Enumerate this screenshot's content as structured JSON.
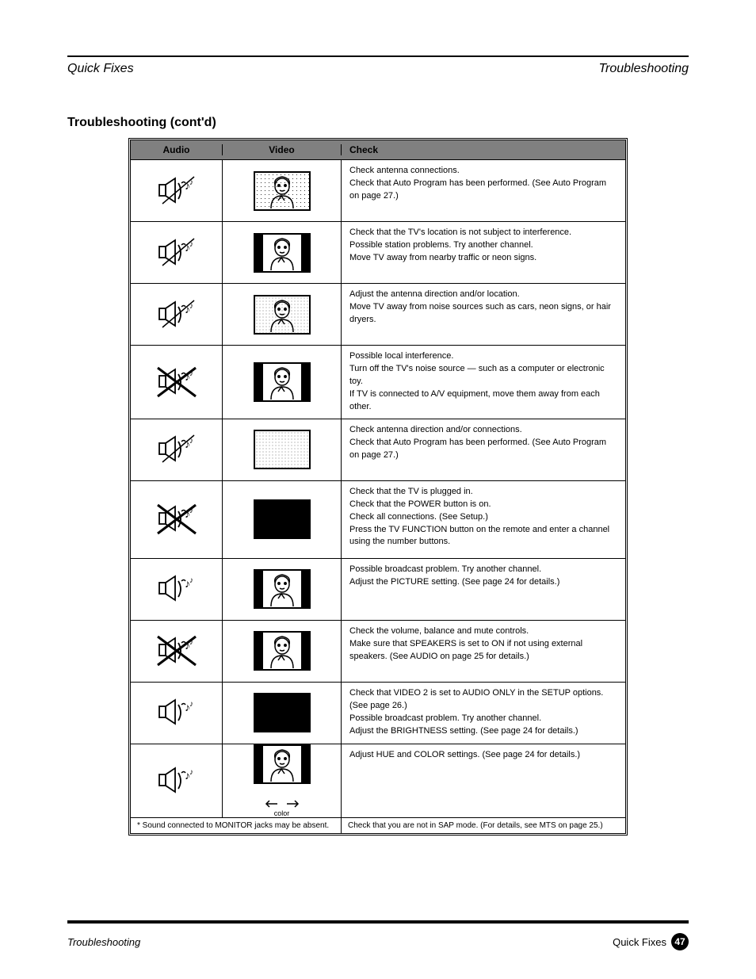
{
  "header": {
    "left": "Quick Fixes",
    "right": "Troubleshooting"
  },
  "title": "Troubleshooting (cont'd)",
  "table": {
    "columns": [
      "Audio",
      "Video",
      "Check"
    ],
    "rows": [
      {
        "audio": "noisy",
        "video": "noisy_face",
        "check": "Check antenna connections.\nCheck that Auto Program has been performed. (See Auto Program on page 27.)"
      },
      {
        "audio": "noisy",
        "video": "pillar_face",
        "check": "Check that the TV's location is not subject to interference.\nPossible station problems. Try another channel.\nMove TV away from nearby traffic or neon signs."
      },
      {
        "audio": "noisy",
        "video": "snow_face",
        "check": "Adjust the antenna direction and/or location.\nMove TV away from noise sources such as cars, neon signs, or hair dryers."
      },
      {
        "audio": "none",
        "video": "pillar_face",
        "check": "Possible local interference.\nTurn off the TV's noise source — such as a computer or electronic toy.\nIf TV is connected to A/V equipment, move them away from each other."
      },
      {
        "audio": "noisy",
        "video": "snow_blank",
        "check": "Check antenna direction and/or connections.\nCheck that Auto Program has been performed. (See Auto Program on page 27.)"
      },
      {
        "audio": "none",
        "video": "black",
        "check": "Check that the TV is plugged in.\nCheck that the POWER button is on.\nCheck all connections. (See Setup.)\nPress the TV FUNCTION button on the remote and enter a channel using the number buttons."
      },
      {
        "audio": "ok",
        "video": "pillar_face",
        "check": "Possible broadcast problem. Try another channel.\nAdjust the PICTURE setting. (See page 24 for details.)"
      },
      {
        "audio": "none",
        "video": "pillar_face",
        "check": "Check the volume, balance and mute controls.\nMake sure that SPEAKERS is set to ON if not using external speakers. (See AUDIO on page 25 for details.)"
      },
      {
        "audio": "ok",
        "video": "black",
        "check": "Check that VIDEO 2 is set to AUDIO ONLY in the SETUP options. (See page 26.)\nPossible broadcast problem. Try another channel.\nAdjust the BRIGHTNESS setting. (See page 24 for details.)"
      },
      {
        "audio": "ok",
        "video": "pillar_face",
        "check": "Adjust HUE and COLOR settings. (See page 24 for details.)",
        "arrows": true
      }
    ],
    "note_left": "* Sound connected to MONITOR jacks may be absent.",
    "note_right": "Check that you are not in SAP mode. (For details, see MTS on page 25.)"
  },
  "footer": {
    "left": "Troubleshooting",
    "right": "Quick Fixes",
    "page": "47"
  },
  "colors": {
    "header_bg": "#808080",
    "border": "#000000",
    "background": "#ffffff"
  }
}
